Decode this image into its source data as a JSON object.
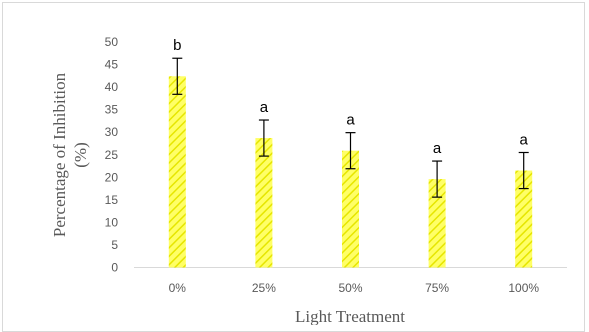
{
  "chart_data": {
    "type": "bar",
    "title": "",
    "xlabel": "Light Treatment",
    "ylabel_lines": [
      "Percentage of Inhibition",
      "(%)"
    ],
    "categories": [
      "0%",
      "25%",
      "50%",
      "75%",
      "100%"
    ],
    "values": [
      42.4,
      28.7,
      25.9,
      19.6,
      21.5
    ],
    "error": [
      4.0,
      4.0,
      4.0,
      4.0,
      4.0
    ],
    "significance_labels": [
      "b",
      "a",
      "a",
      "a",
      "a"
    ],
    "ylim": [
      0,
      50
    ],
    "yticks": [
      "0",
      "5",
      "10",
      "15",
      "20",
      "25",
      "30",
      "35",
      "40",
      "45",
      "50"
    ],
    "grid": false,
    "legend": "none",
    "bar_fill": "#ffff66",
    "bar_hatch": "#e6e600"
  }
}
